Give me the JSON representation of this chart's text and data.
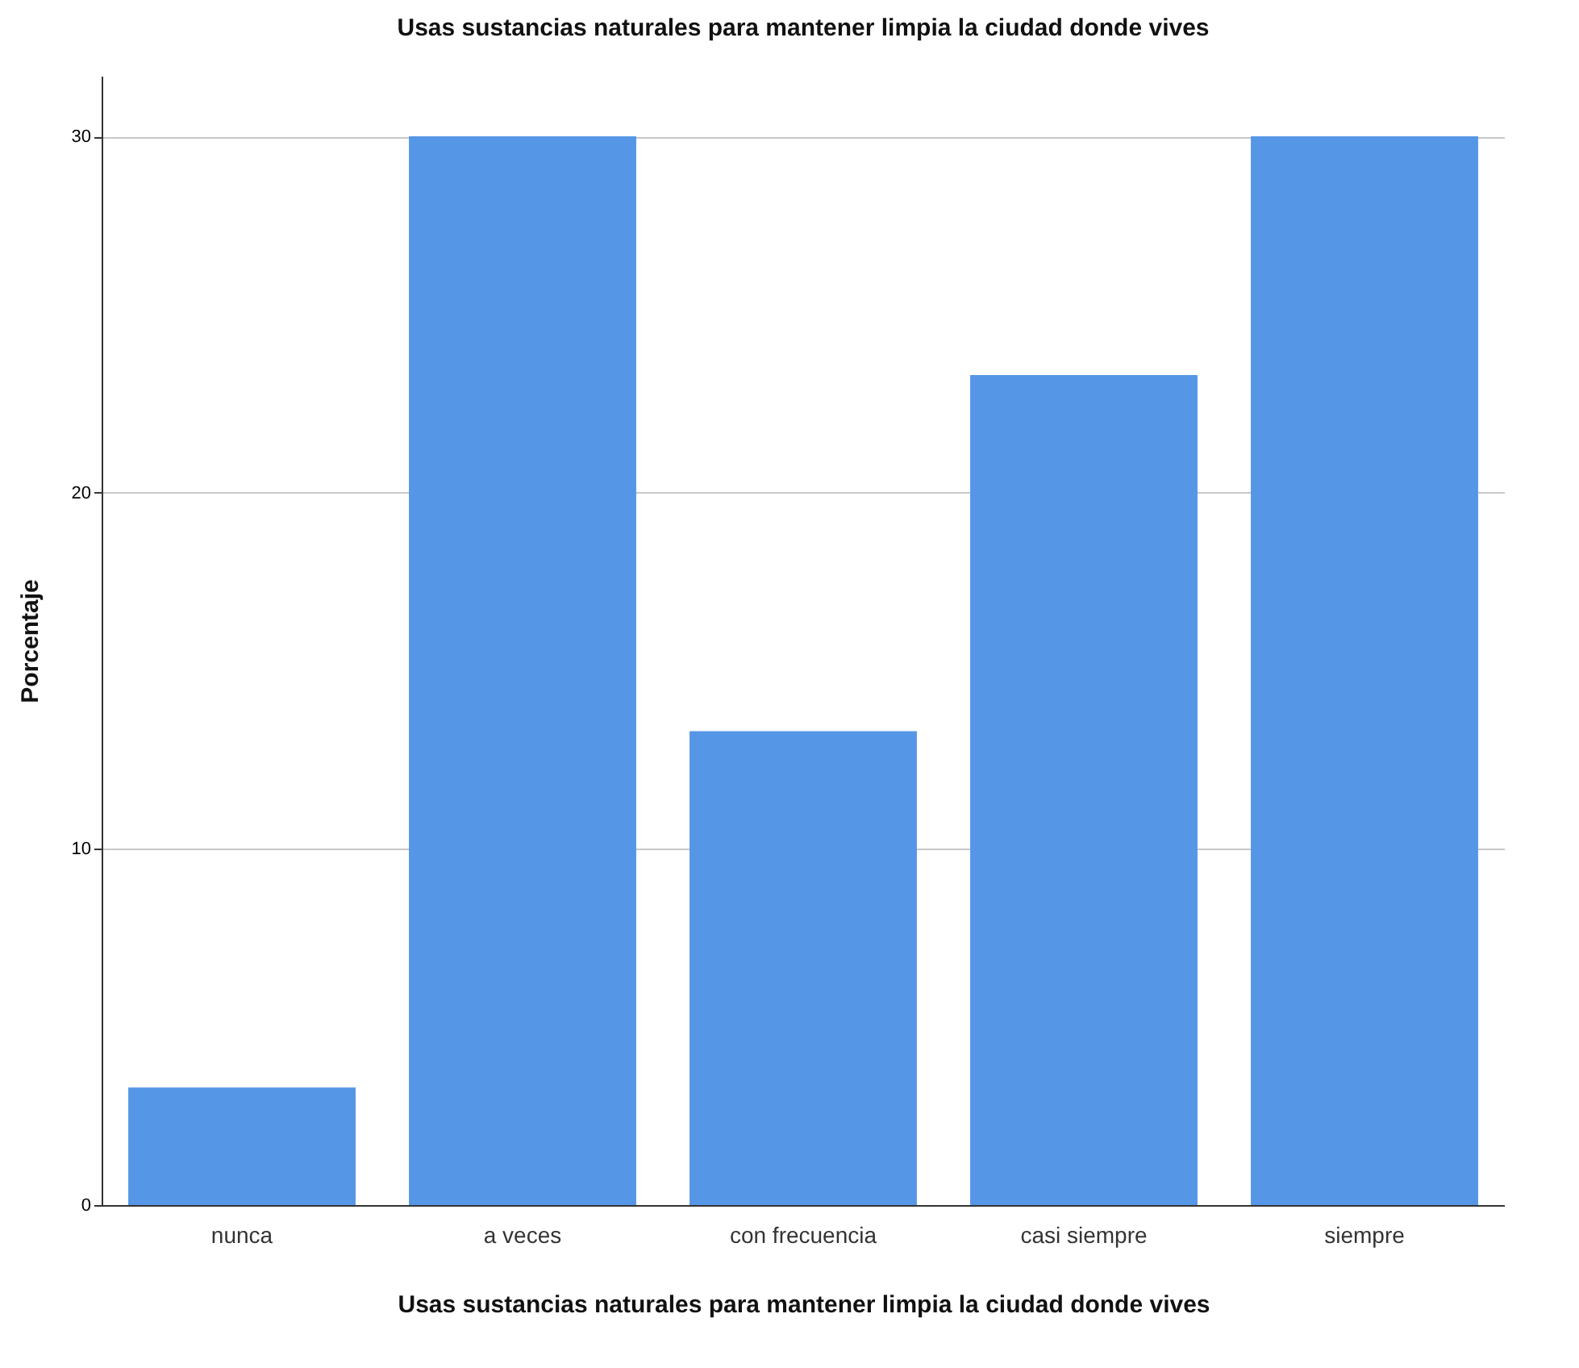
{
  "chart_data": {
    "type": "bar",
    "title": "Usas sustancias naturales para mantener limpia la ciudad donde vives",
    "xlabel": "Usas sustancias naturales para mantener limpia la ciudad donde vives",
    "ylabel": "Porcentaje",
    "categories": [
      "nunca",
      "a veces",
      "con frecuencia",
      "casi siempre",
      "siempre"
    ],
    "values": [
      3.3,
      30,
      13.3,
      23.3,
      30
    ],
    "color": "#5596e6",
    "ylim": [
      0,
      31.7
    ],
    "yticks": [
      0,
      10,
      20,
      30
    ],
    "grid": "y"
  }
}
